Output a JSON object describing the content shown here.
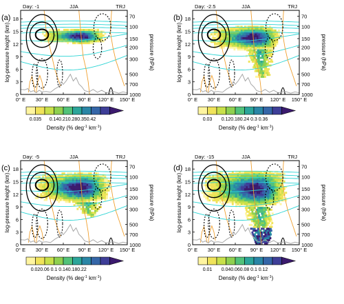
{
  "figure": {
    "y_label": "log-pressure height (km)",
    "y_right_label": "pressure (hPa)",
    "colorbar_label": "Density (% deg",
    "colorbar_label_sup1": "-1",
    "colorbar_label_mid": " km",
    "colorbar_label_sup2": "-1",
    "colorbar_label_end": ")"
  },
  "colors": {
    "palette": [
      "#fff5a0",
      "#f0e35a",
      "#c8e04a",
      "#8fd050",
      "#52c27a",
      "#2ca59a",
      "#2a86a6",
      "#3566a8",
      "#3e3e98",
      "#3b1a6e"
    ],
    "cyan": "#2ad4d4",
    "orange": "#f0a030",
    "topography": "#a8a8a8",
    "contour": "#000000"
  },
  "chart_data": [
    {
      "type": "heatmap",
      "panel_label": "(a)",
      "day_label": "Day: -1",
      "season": "JJA",
      "tag": "TRJ",
      "x_ticks": [
        "0° E",
        "30° E",
        "60° E",
        "90° E",
        "120° E",
        "150° E"
      ],
      "xlim": [
        0,
        150
      ],
      "y_ticks": [
        "0",
        "3",
        "6",
        "9",
        "12",
        "15",
        "18"
      ],
      "ylim": [
        0,
        20
      ],
      "p_ticks": [
        "70",
        "100",
        "150",
        "200",
        "300",
        "500",
        "700",
        "1000"
      ],
      "colorbar_ticks": [
        "0.035",
        "0.14",
        "0.21",
        "0.28",
        "0.35",
        "0.42"
      ],
      "colorbar_tick_index": [
        1,
        3,
        4,
        5,
        6,
        7
      ],
      "colorbar_ncolors": 10,
      "density_core": {
        "lon_range": [
          20,
          120
        ],
        "z_range": [
          12,
          15.5
        ],
        "max_lon": 87,
        "max_z": 13.5,
        "downward_extent_km": 0
      }
    },
    {
      "type": "heatmap",
      "panel_label": "(b)",
      "day_label": "Day: -2.5",
      "season": "JJA",
      "tag": "TRJ",
      "x_ticks": [
        "0° E",
        "30° E",
        "60° E",
        "90° E",
        "120° E",
        "150° E"
      ],
      "xlim": [
        0,
        150
      ],
      "y_ticks": [
        "0",
        "3",
        "6",
        "9",
        "12",
        "15",
        "18"
      ],
      "ylim": [
        0,
        20
      ],
      "p_ticks": [
        "70",
        "100",
        "150",
        "200",
        "300",
        "500",
        "700",
        "1000"
      ],
      "colorbar_ticks": [
        "0.03",
        "0.12",
        "0.18",
        "0.24",
        "0.3",
        "0.36"
      ],
      "colorbar_tick_index": [
        1,
        3,
        4,
        5,
        6,
        7
      ],
      "colorbar_ncolors": 10,
      "density_core": {
        "lon_range": [
          15,
          125
        ],
        "z_range": [
          10.5,
          16
        ],
        "max_lon": 88,
        "max_z": 13.3,
        "downward_extent_km": 6.5
      }
    },
    {
      "type": "heatmap",
      "panel_label": "(c)",
      "day_label": "Day: -5",
      "season": "JJA",
      "tag": "TRJ",
      "x_ticks": [
        "0° E",
        "30° E",
        "60° E",
        "90° E",
        "120° E",
        "150° E"
      ],
      "xlim": [
        0,
        150
      ],
      "y_ticks": [
        "0",
        "3",
        "6",
        "9",
        "12",
        "15",
        "18"
      ],
      "ylim": [
        0,
        20
      ],
      "p_ticks": [
        "70",
        "100",
        "150",
        "200",
        "300",
        "500",
        "700",
        "1000"
      ],
      "colorbar_ticks": [
        "0.02",
        "0.06",
        "0.1",
        "0.14",
        "0.18",
        "0.22"
      ],
      "colorbar_tick_index": [
        1,
        2,
        3,
        4,
        5,
        6
      ],
      "colorbar_ncolors": 10,
      "density_core": {
        "lon_range": [
          10,
          130
        ],
        "z_range": [
          10,
          17
        ],
        "max_lon": 85,
        "max_z": 13.2,
        "downward_extent_km": 3.5
      }
    },
    {
      "type": "heatmap",
      "panel_label": "(d)",
      "day_label": "Day: -15",
      "season": "JJA",
      "tag": "TRJ",
      "x_ticks": [
        "0° E",
        "30° E",
        "60° E",
        "90° E",
        "120° E",
        "150° E"
      ],
      "xlim": [
        0,
        150
      ],
      "y_ticks": [
        "0",
        "3",
        "6",
        "9",
        "12",
        "15",
        "18"
      ],
      "ylim": [
        0,
        20
      ],
      "p_ticks": [
        "70",
        "100",
        "150",
        "200",
        "300",
        "500",
        "700",
        "1000"
      ],
      "colorbar_ticks": [
        "0.01",
        "0.04",
        "0.06",
        "0.08",
        "0.1",
        "0.12"
      ],
      "colorbar_tick_index": [
        1,
        3,
        4,
        5,
        6,
        7
      ],
      "colorbar_ncolors": 10,
      "density_core": {
        "lon_range": [
          5,
          135
        ],
        "z_range": [
          9,
          17.5
        ],
        "max_lon": 90,
        "max_z": 2,
        "downward_extent_km": 9
      }
    }
  ]
}
